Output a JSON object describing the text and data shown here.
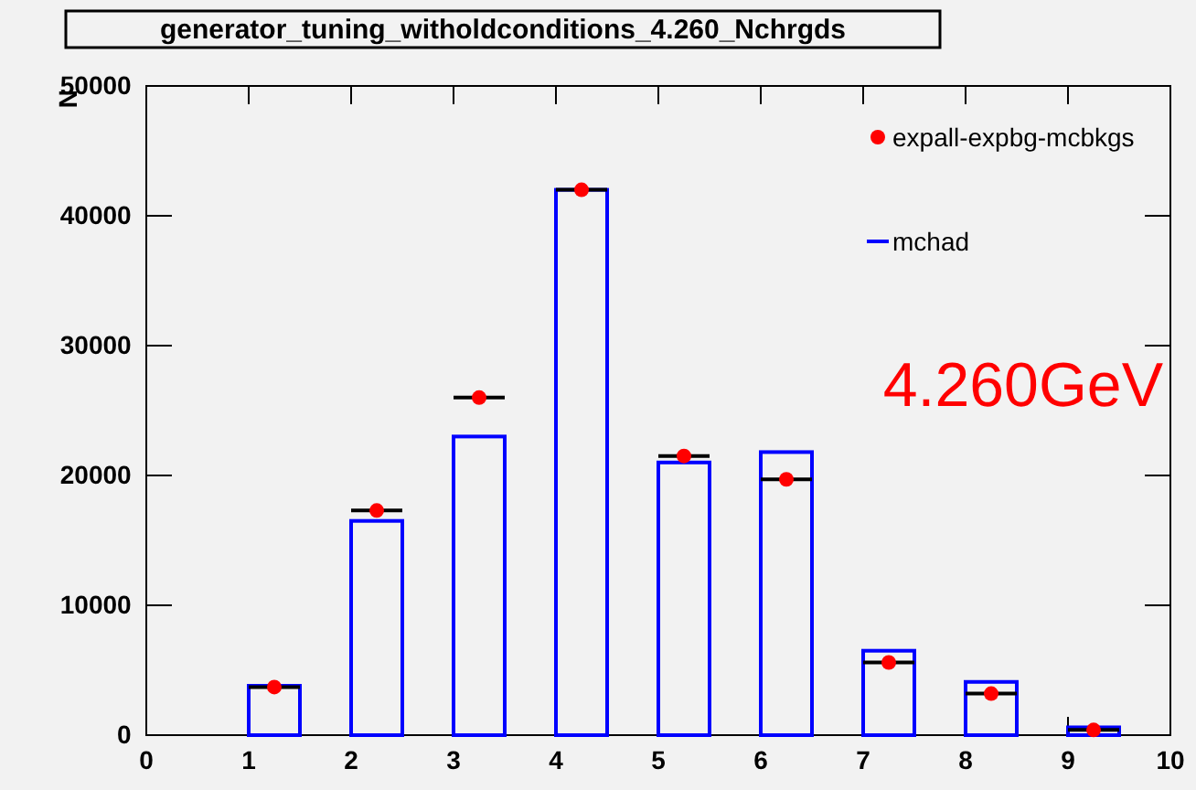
{
  "chart_data": {
    "type": "histogram",
    "title": "generator_tuning_witholdconditions_4.260_Nchrgds",
    "ylabel": "N",
    "bins": [
      0,
      0.5,
      1,
      1.5,
      2,
      2.5,
      3,
      3.5,
      4,
      4.5,
      5,
      5.5,
      6,
      6.5,
      7,
      7.5,
      8,
      8.5,
      9,
      9.5,
      10
    ],
    "series": [
      {
        "name": "expall-expbg-mcbkgs",
        "type": "scatter",
        "color": "#ff0000",
        "x": [
          1.25,
          2.25,
          3.25,
          4.25,
          5.25,
          6.25,
          7.25,
          8.25,
          9.25
        ],
        "values": [
          3700,
          17300,
          26000,
          42000,
          21500,
          19700,
          5600,
          3200,
          400
        ],
        "xerrors": [
          0.25,
          0.25,
          0.25,
          0.25,
          0.25,
          0.25,
          0.25,
          0.25,
          0.25
        ]
      },
      {
        "name": "mchad",
        "color": "#0000ff",
        "values": [
          0,
          0,
          3800,
          0,
          16500,
          0,
          23000,
          0,
          42000,
          0,
          21000,
          0,
          21800,
          0,
          6500,
          0,
          4100,
          0,
          600,
          0
        ]
      }
    ],
    "xlim": [
      0,
      10
    ],
    "xticks": [
      0,
      1,
      2,
      3,
      4,
      5,
      6,
      7,
      8,
      9,
      10
    ],
    "ylim": [
      0,
      50000
    ],
    "yticks": [
      0,
      10000,
      20000,
      30000,
      40000,
      50000
    ],
    "grid": false,
    "legend": "top right",
    "marker": "circle",
    "annotations": [
      "4.260GeV"
    ]
  }
}
